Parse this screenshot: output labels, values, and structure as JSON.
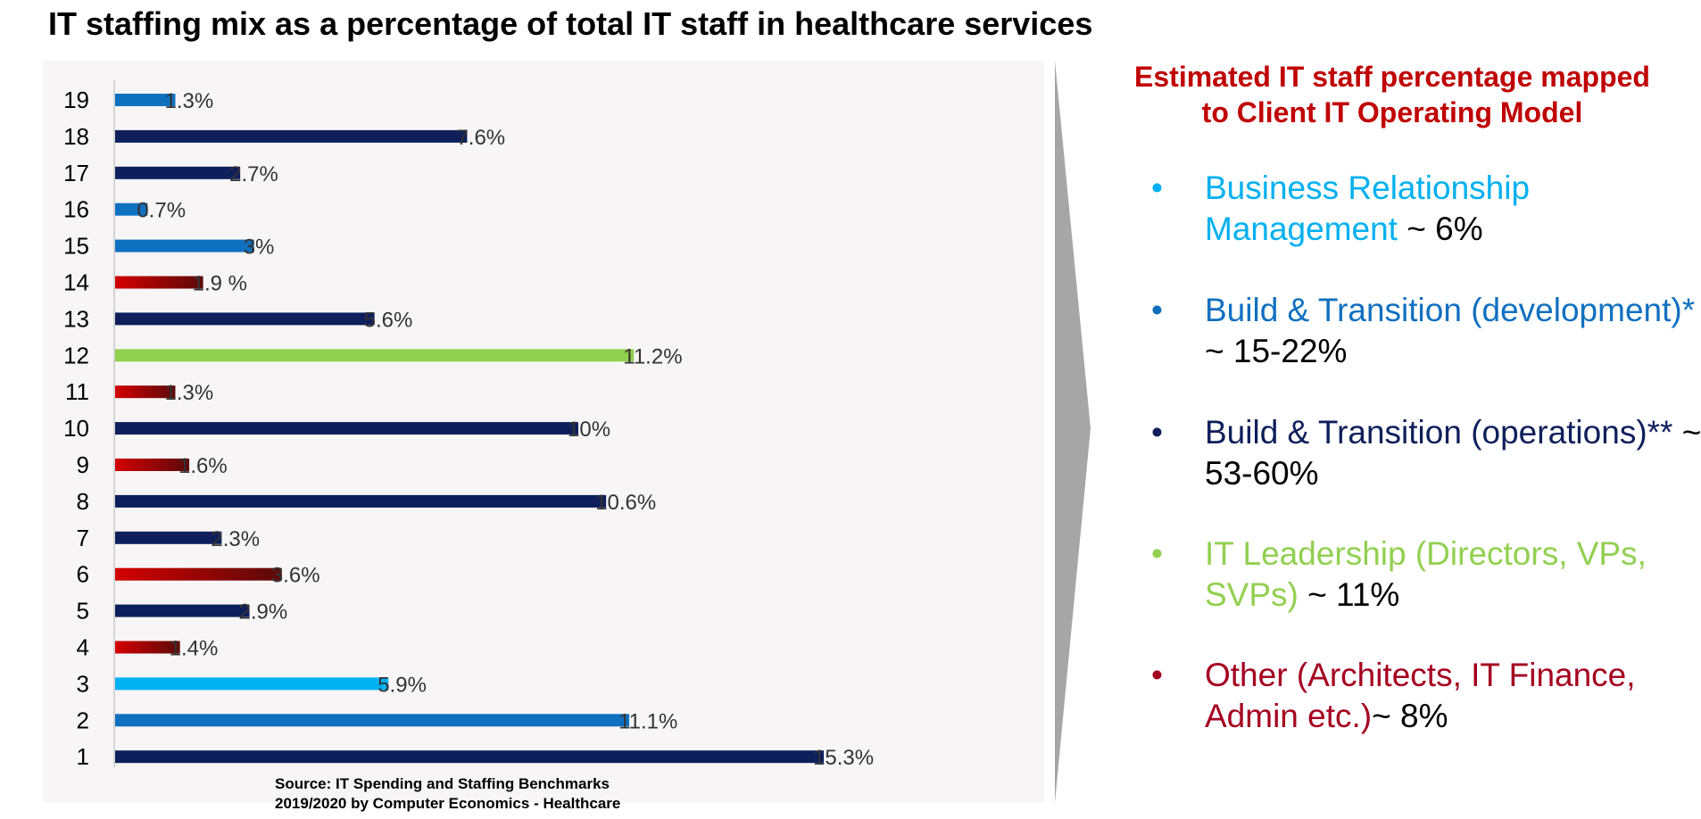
{
  "title": "IT staffing mix as a percentage of total IT staff in healthcare services",
  "source": {
    "line1": "Source: IT Spending and Staffing Benchmarks",
    "line2": "2019/2020 by Computer Economics - Healthcare"
  },
  "colors": {
    "navy": "#0e1f5b",
    "mid_blue": "#1070c0",
    "light_blue": "#00b0f0",
    "green": "#92d050",
    "red_dark": "#c00000",
    "bullet_business": "#00b0f0",
    "bullet_dev": "#1070c0",
    "bullet_ops": "#0e1f5b",
    "bullet_leadership": "#92d050",
    "bullet_other": "#a50021",
    "title_red": "#c00000"
  },
  "chart_data": {
    "type": "bar",
    "orientation": "horizontal",
    "categories": [
      "1",
      "2",
      "3",
      "4",
      "5",
      "6",
      "7",
      "8",
      "9",
      "10",
      "11",
      "12",
      "13",
      "14",
      "15",
      "16",
      "17",
      "18",
      "19"
    ],
    "values": [
      15.3,
      11.1,
      5.9,
      1.4,
      2.9,
      3.6,
      2.3,
      10.6,
      1.6,
      10,
      1.3,
      11.2,
      5.6,
      1.9,
      3,
      0.7,
      2.7,
      7.6,
      1.3
    ],
    "labels": [
      "15.3%",
      "11.1%",
      "5.9%",
      "1.4%",
      "2.9%",
      "3.6%",
      "2.3%",
      "10.6%",
      "1.6%",
      "10%",
      "1.3%",
      "11.2%",
      "5.6%",
      "1.9 %",
      "3%",
      "0.7%",
      "2.7%",
      "7.6%",
      "1.3%"
    ],
    "bar_colors": [
      "navy",
      "mid_blue",
      "light_blue",
      "red",
      "navy",
      "red",
      "navy",
      "navy",
      "red",
      "navy",
      "red",
      "green",
      "navy",
      "red",
      "mid_blue",
      "mid_blue",
      "navy",
      "navy",
      "mid_blue"
    ],
    "xlim": [
      0,
      20
    ],
    "grid": false,
    "legend": false
  },
  "right_panel": {
    "title_line1": "Estimated IT staff percentage mapped",
    "title_line2": "to Client IT Operating Model",
    "bullets": [
      {
        "marker": "•",
        "text": "Business Relationship Management",
        "suffix": " ~ 6%",
        "color": "bullet_business"
      },
      {
        "marker": "•",
        "text": "Build & Transition (development)*",
        "suffix": " ~ 15-22%",
        "color": "bullet_dev"
      },
      {
        "marker": "•",
        "text": "Build & Transition (operations)**",
        "suffix": " ~ 53-60%",
        "color": "bullet_ops"
      },
      {
        "marker": "•",
        "text": "IT Leadership (Directors, VPs, SVPs)",
        "suffix": " ~ 11%",
        "color": "bullet_leadership"
      },
      {
        "marker": "•",
        "text": "Other (Architects, IT Finance, Admin etc.)",
        "suffix": "~ 8%",
        "color": "bullet_other"
      }
    ]
  }
}
